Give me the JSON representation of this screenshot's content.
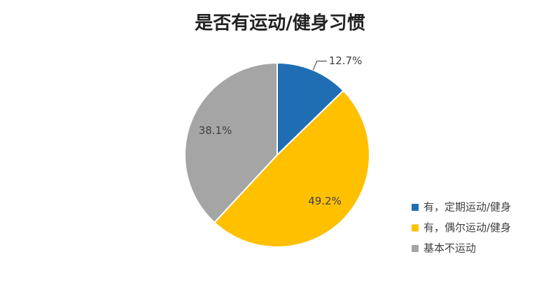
{
  "chart_data": {
    "type": "pie",
    "title": "是否有运动/健身习惯",
    "categories": [
      "有，定期运动/健身",
      "有，偶尔运动/健身",
      "基本不运动"
    ],
    "values": [
      12.7,
      49.2,
      38.1
    ],
    "value_labels": [
      "12.7%",
      "49.2%",
      "38.1%"
    ],
    "colors": [
      "#1f6eb4",
      "#ffc000",
      "#a5a5a5"
    ],
    "legend": "right"
  }
}
